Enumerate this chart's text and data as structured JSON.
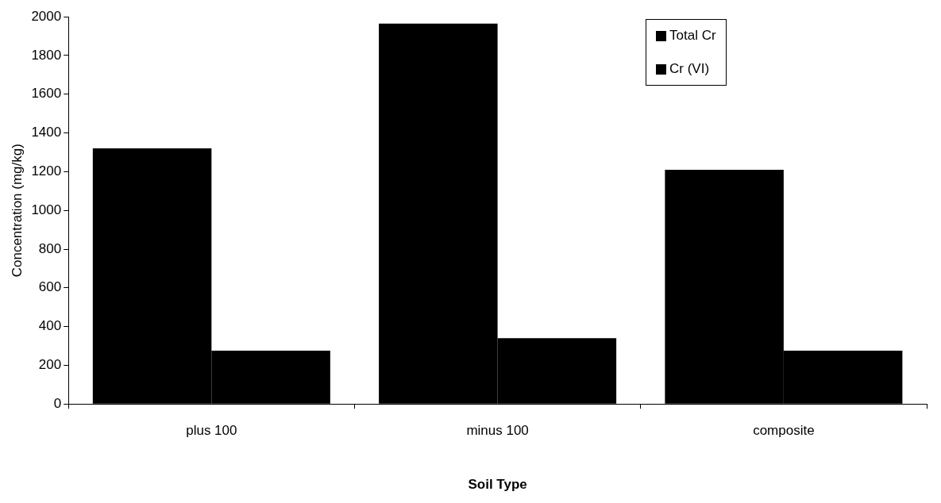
{
  "chart_data": {
    "type": "bar",
    "xlabel": "Soil Type",
    "ylabel": "Concentration (mg/kg)",
    "categories": [
      "plus 100",
      "minus 100",
      "composite"
    ],
    "series": [
      {
        "name": "Total Cr",
        "color": "#000000",
        "values": [
          1320,
          1965,
          1210
        ]
      },
      {
        "name": "Cr (VI)",
        "color": "#000000",
        "values": [
          275,
          340,
          275
        ]
      }
    ],
    "ylim": [
      0,
      2000
    ],
    "yticks": [
      0,
      200,
      400,
      600,
      800,
      1000,
      1200,
      1400,
      1600,
      1800,
      2000
    ],
    "legend": "top right"
  }
}
